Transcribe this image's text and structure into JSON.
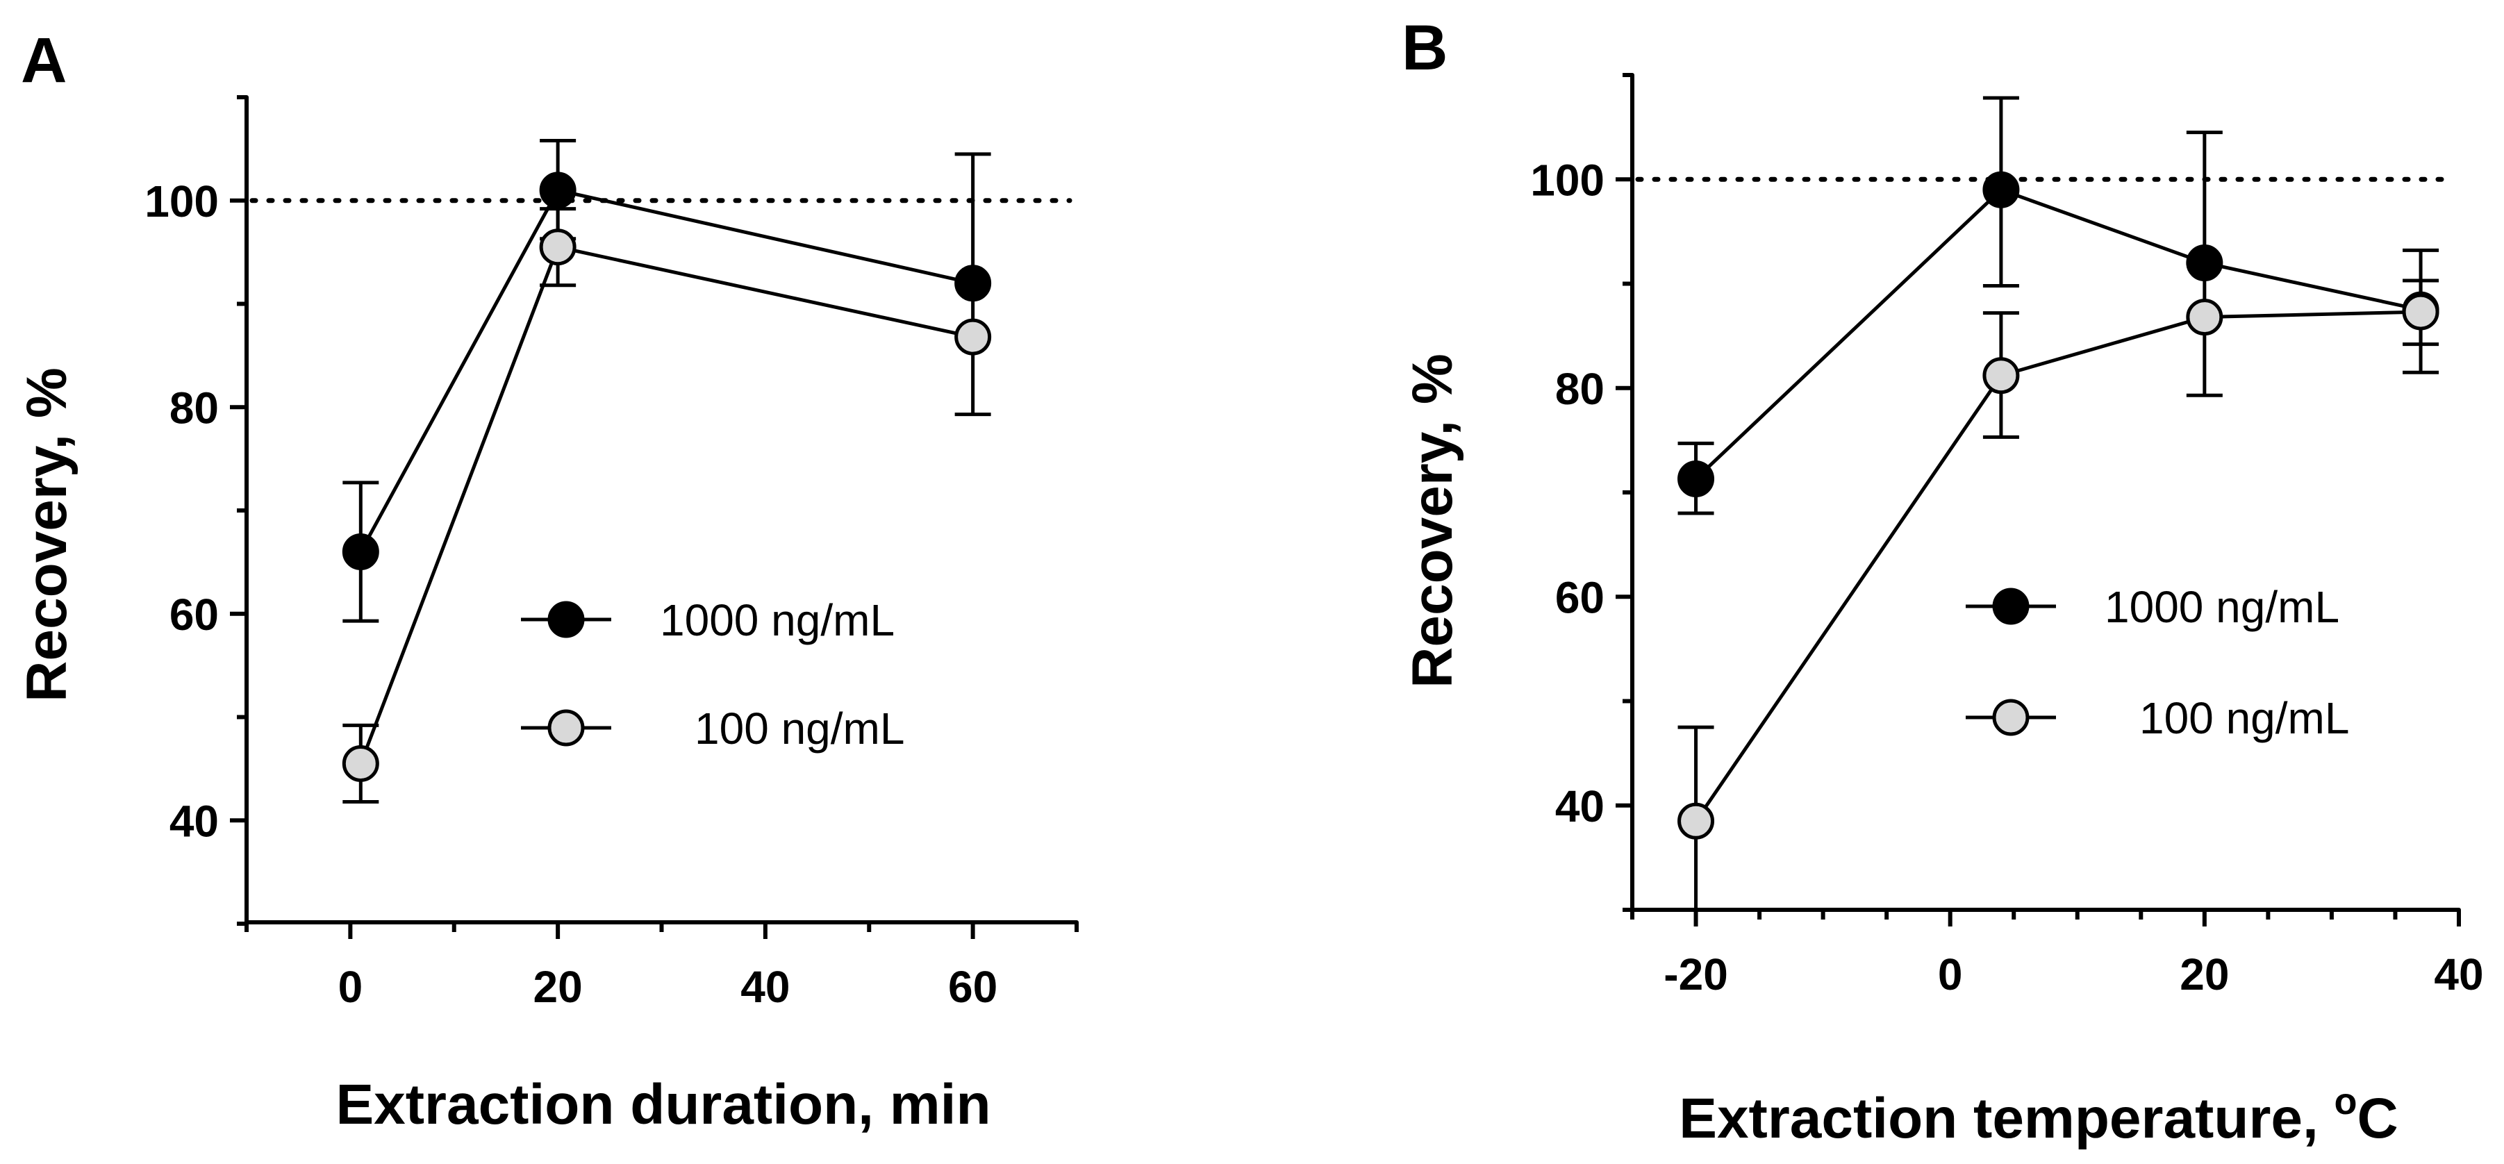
{
  "figure": {
    "panels": [
      "A",
      "B"
    ]
  },
  "chart_data": [
    {
      "panel": "A",
      "type": "line",
      "xlabel": "Extraction duration, min",
      "ylabel": "Recovery, %",
      "xlim": [
        -10,
        70
      ],
      "ylim": [
        30,
        110
      ],
      "x_tick_labels": [
        "0",
        "20",
        "40",
        "60"
      ],
      "x_tick_values": [
        0,
        20,
        40,
        60
      ],
      "x_minor_ticks": [
        -10,
        10,
        30,
        50,
        70
      ],
      "y_tick_labels": [
        "40",
        "60",
        "80",
        "100"
      ],
      "y_tick_values": [
        40,
        60,
        80,
        100
      ],
      "y_minor_ticks": [
        30,
        50,
        70,
        90,
        110
      ],
      "reference_line": 100,
      "series": [
        {
          "name": "1000 ng/mL",
          "marker": "filled",
          "color": "#000000",
          "x": [
            1,
            20,
            60
          ],
          "y": [
            66,
            101,
            92
          ],
          "err_lower": [
            59.3,
            96.3,
            92
          ],
          "err_upper": [
            72.7,
            105.8,
            104.5
          ]
        },
        {
          "name": "100 ng/mL",
          "marker": "open",
          "color": "#d9d9d9",
          "x": [
            1,
            20,
            60
          ],
          "y": [
            45.5,
            95.5,
            86.8
          ],
          "err_lower": [
            41.8,
            91.8,
            79.3
          ],
          "err_upper": [
            49.2,
            99.2,
            92
          ]
        }
      ],
      "legend": {
        "placement": "center-right"
      }
    },
    {
      "panel": "B",
      "type": "line",
      "xlabel": "Extraction temperature, ",
      "xlabel_sup": "o",
      "xlabel_unit": "C",
      "ylabel": "Recovery, %",
      "xlim": [
        -25,
        40
      ],
      "ylim": [
        30,
        110
      ],
      "x_tick_labels": [
        "-20",
        "0",
        "20",
        "40"
      ],
      "x_tick_values": [
        -20,
        0,
        20,
        40
      ],
      "x_minor_ticks": [
        -25,
        -15,
        -10,
        -5,
        5,
        10,
        15,
        25,
        30,
        35
      ],
      "y_tick_labels": [
        "40",
        "60",
        "80",
        "100"
      ],
      "y_tick_values": [
        40,
        60,
        80,
        100
      ],
      "y_minor_ticks": [
        30,
        50,
        70,
        90,
        110
      ],
      "reference_line": 100,
      "series": [
        {
          "name": "1000 ng/mL",
          "marker": "filled",
          "color": "#000000",
          "x": [
            -20,
            4,
            20,
            37
          ],
          "y": [
            71.3,
            99,
            92,
            87.5
          ],
          "err_lower": [
            68,
            89.8,
            92,
            84.2
          ],
          "err_upper": [
            74.7,
            107.8,
            104.5,
            93.2
          ]
        },
        {
          "name": "100 ng/mL",
          "marker": "open",
          "color": "#d9d9d9",
          "x": [
            -20,
            4,
            20,
            37
          ],
          "y": [
            38.5,
            81.2,
            86.8,
            87.3
          ],
          "err_lower": [
            30,
            75.3,
            79.3,
            81.5
          ],
          "err_upper": [
            47.5,
            87.2,
            92,
            90.3
          ]
        }
      ],
      "legend": {
        "placement": "center-right"
      }
    }
  ]
}
